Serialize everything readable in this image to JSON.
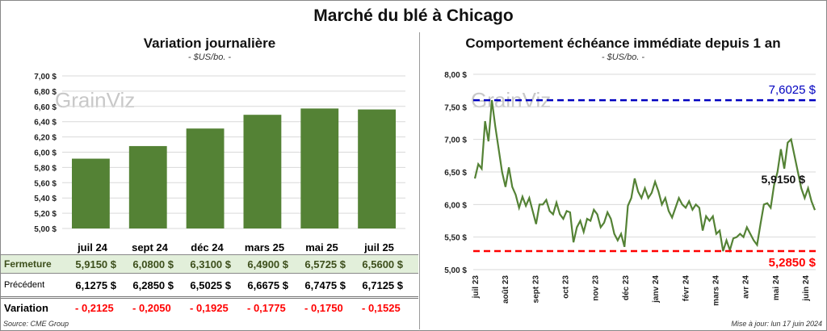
{
  "title": "Marché du blé à Chicago",
  "watermark": "GrainViz",
  "source": "Source: CME Group",
  "updated": "Mise à jour: lun 17 juin 2024",
  "colors": {
    "bar": "#548235",
    "line": "#548235",
    "high": "#0000c0",
    "low": "#ff0000",
    "variation": "#ff0000",
    "fermeture_bg": "#e2efda"
  },
  "chart_data": [
    {
      "type": "bar",
      "title": "Variation journalière",
      "subtitle": "- $US/bo. -",
      "categories": [
        "juil 24",
        "sept 24",
        "déc 24",
        "mars 25",
        "mai 25",
        "juil 25"
      ],
      "values": [
        5.915,
        6.08,
        6.31,
        6.49,
        6.5725,
        6.56
      ],
      "ylim": [
        5.0,
        7.0
      ],
      "yticks": [
        "5,00 $",
        "5,20 $",
        "5,40 $",
        "5,60 $",
        "5,80 $",
        "6,00 $",
        "6,20 $",
        "6,40 $",
        "6,60 $",
        "6,80 $",
        "7,00 $"
      ],
      "grid": true,
      "table": {
        "rows": [
          {
            "label": "Fermeture",
            "values": [
              "5,9150  $",
              "6,0800  $",
              "6,3100  $",
              "6,4900  $",
              "6,5725  $",
              "6,5600  $"
            ]
          },
          {
            "label": "Précédent",
            "values": [
              "6,1275  $",
              "6,2850  $",
              "6,5025  $",
              "6,6675  $",
              "6,7475  $",
              "6,7125  $"
            ]
          },
          {
            "label": "Variation",
            "values": [
              "- 0,2125",
              "- 0,2050",
              "- 0,1925",
              "- 0,1775",
              "- 0,1750",
              "- 0,1525"
            ]
          }
        ]
      }
    },
    {
      "type": "line",
      "title": "Comportement  échéance immédiate depuis 1 an",
      "subtitle": "- $US/bo. -",
      "ylim": [
        5.0,
        8.0
      ],
      "yticks": [
        "5,00 $",
        "5,50 $",
        "6,00 $",
        "6,50 $",
        "7,00 $",
        "7,50 $",
        "8,00 $"
      ],
      "xticks": [
        "juil 23",
        "août 23",
        "sept 23",
        "oct 23",
        "nov 23",
        "déc 23",
        "janv 24",
        "févr 24",
        "mars 24",
        "avr 24",
        "mai 24",
        "juin 24"
      ],
      "grid": true,
      "values": [
        6.4,
        6.62,
        6.55,
        7.28,
        6.97,
        7.6025,
        7.2,
        6.85,
        6.5,
        6.27,
        6.57,
        6.27,
        6.15,
        5.95,
        6.12,
        5.98,
        6.1,
        5.9,
        5.7,
        6.0,
        6.0,
        6.07,
        5.9,
        5.85,
        6.03,
        5.85,
        5.78,
        5.9,
        5.88,
        5.42,
        5.65,
        5.75,
        5.58,
        5.78,
        5.75,
        5.92,
        5.85,
        5.65,
        5.72,
        5.88,
        5.78,
        5.55,
        5.45,
        5.55,
        5.35,
        5.98,
        6.1,
        6.4,
        6.2,
        6.1,
        6.25,
        6.1,
        6.18,
        6.35,
        6.2,
        6.0,
        6.1,
        5.9,
        5.8,
        5.95,
        6.1,
        6.0,
        5.95,
        6.05,
        5.92,
        6.0,
        5.95,
        5.6,
        5.82,
        5.75,
        5.82,
        5.55,
        5.6,
        5.285,
        5.45,
        5.3,
        5.48,
        5.5,
        5.55,
        5.5,
        5.65,
        5.55,
        5.45,
        5.38,
        5.7,
        6.0,
        6.02,
        5.95,
        6.3,
        6.5,
        6.85,
        6.55,
        6.95,
        7.0,
        6.75,
        6.5,
        6.25,
        6.1,
        6.25,
        6.05,
        5.915
      ],
      "high": {
        "value": 7.6025,
        "label": "7,6025  $"
      },
      "low": {
        "value": 5.285,
        "label": "5,2850  $"
      },
      "last": {
        "value": 5.915,
        "label": "5,9150 $"
      }
    }
  ]
}
